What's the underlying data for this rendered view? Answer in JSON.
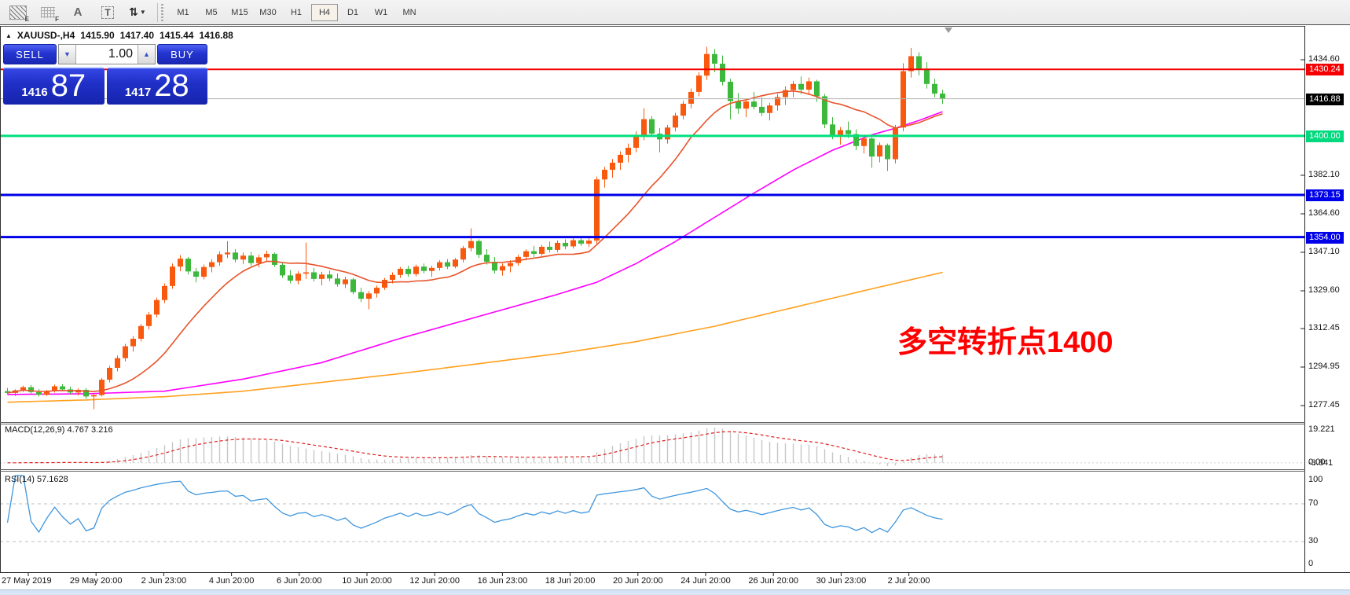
{
  "toolbar": {
    "icons": [
      {
        "name": "hatch-pattern-e-icon",
        "sub": "E"
      },
      {
        "name": "dotted-grid-f-icon",
        "sub": "F"
      },
      {
        "name": "text-label-a-icon",
        "glyph": "A"
      },
      {
        "name": "text-box-t-icon",
        "glyph": "T"
      },
      {
        "name": "sort-arrows-icon",
        "glyph": "⇅",
        "caret": "▼"
      }
    ],
    "timeframes": [
      "M1",
      "M5",
      "M15",
      "M30",
      "H1",
      "H4",
      "D1",
      "W1",
      "MN"
    ],
    "active_timeframe": "H4"
  },
  "chart_header": {
    "collapse": "▲",
    "symbol": "XAUUSD-,H4",
    "open": "1415.90",
    "high": "1417.40",
    "low": "1415.44",
    "close": "1416.88"
  },
  "trade_panel": {
    "sell_label": "SELL",
    "buy_label": "BUY",
    "volume": "1.00",
    "spin_down_glyph": "▼",
    "spin_up_glyph": "▲",
    "sell_price_major": "1416",
    "sell_price_minor": "87",
    "buy_price_major": "1417",
    "buy_price_minor": "28"
  },
  "annotation": {
    "text": "多空转折点1400",
    "color": "#ff0000"
  },
  "price_axis": {
    "plain_ticks": [
      1434.6,
      1382.1,
      1364.6,
      1347.1,
      1329.6,
      1312.45,
      1294.95,
      1277.45
    ],
    "lines": [
      {
        "price": 1430.24,
        "text": "1430.24",
        "bg": "#f40000",
        "line_color": "#f40000",
        "width": 2
      },
      {
        "price": 1416.88,
        "text": "1416.88",
        "bg": "#000000",
        "line_color": "#b4b4b4",
        "width": 1
      },
      {
        "price": 1400.0,
        "text": "1400.00",
        "bg": "#00d97d",
        "line_color": "#00e07e",
        "width": 3
      },
      {
        "price": 1373.15,
        "text": "1373.15",
        "bg": "#0000e8",
        "line_color": "#0000e8",
        "width": 3
      },
      {
        "price": 1354.0,
        "text": "1354.00",
        "bg": "#0000e8",
        "line_color": "#0000e8",
        "width": 3
      }
    ]
  },
  "time_axis": {
    "labels": [
      "27 May 2019",
      "29 May 20:00",
      "2 Jun 23:00",
      "4 Jun 20:00",
      "6 Jun 20:00",
      "10 Jun 20:00",
      "12 Jun 20:00",
      "16 Jun 23:00",
      "18 Jun 20:00",
      "20 Jun 20:00",
      "24 Jun 20:00",
      "26 Jun 20:00",
      "30 Jun 23:00",
      "2 Jul 20:00"
    ]
  },
  "indicators": {
    "macd": {
      "label": "MACD(12,26,9) 4.767 3.216",
      "fast": 12,
      "slow": 26,
      "signal": 9,
      "axis": [
        {
          "v": 19.221,
          "t": "19.221"
        },
        {
          "v": 0,
          "t": "0.00"
        },
        {
          "v": -3.841,
          "t": "-3.841"
        }
      ],
      "value": 4.767,
      "signal_value": 3.216
    },
    "rsi": {
      "label": "RSI(14) 57.1628",
      "period": 14,
      "value": 57.1628,
      "axis": [
        100,
        70,
        30,
        0
      ],
      "levels": [
        70,
        30
      ]
    }
  },
  "chart_data": {
    "type": "candlestick",
    "symbol": "XAUUSD-",
    "timeframe": "H4",
    "ylim": [
      1270.0,
      1450.0
    ],
    "colors": {
      "up": "#f8590f",
      "down": "#3cb83c",
      "ma_fast": "#e8532a",
      "ma_mid": "#ff00ff",
      "ma_slow": "#ffa01e",
      "macd_hist": "#c6c6c6",
      "macd_signal": "#e02020",
      "rsi_line": "#4096dd",
      "level_dash": "#bcbcbc"
    },
    "ma_fast_period": 13,
    "candles": [
      [
        1284.0,
        1285.5,
        1282.5,
        1283.2
      ],
      [
        1283.2,
        1284.8,
        1281.8,
        1284.4
      ],
      [
        1284.4,
        1286.5,
        1283.6,
        1285.8
      ],
      [
        1285.8,
        1286.8,
        1283.0,
        1283.6
      ],
      [
        1283.6,
        1285.0,
        1281.5,
        1282.4
      ],
      [
        1282.4,
        1284.6,
        1281.8,
        1284.0
      ],
      [
        1284.0,
        1287.0,
        1283.4,
        1286.2
      ],
      [
        1286.2,
        1287.2,
        1284.0,
        1284.8
      ],
      [
        1284.8,
        1286.0,
        1282.6,
        1283.4
      ],
      [
        1283.4,
        1285.2,
        1282.0,
        1284.6
      ],
      [
        1284.6,
        1285.4,
        1280.5,
        1281.6
      ],
      [
        1281.6,
        1283.0,
        1275.8,
        1282.2
      ],
      [
        1282.2,
        1290.0,
        1281.6,
        1289.2
      ],
      [
        1289.2,
        1295.5,
        1288.0,
        1294.6
      ],
      [
        1294.6,
        1300.2,
        1293.0,
        1299.0
      ],
      [
        1299.0,
        1305.5,
        1297.5,
        1304.4
      ],
      [
        1304.4,
        1309.0,
        1302.0,
        1307.8
      ],
      [
        1307.8,
        1314.5,
        1306.6,
        1313.6
      ],
      [
        1313.6,
        1320.0,
        1312.0,
        1318.8
      ],
      [
        1318.8,
        1326.5,
        1317.5,
        1325.4
      ],
      [
        1325.4,
        1333.0,
        1324.0,
        1331.8
      ],
      [
        1331.8,
        1342.0,
        1330.5,
        1340.6
      ],
      [
        1340.6,
        1345.8,
        1338.5,
        1344.2
      ],
      [
        1344.2,
        1345.0,
        1337.0,
        1338.4
      ],
      [
        1338.4,
        1340.0,
        1333.5,
        1336.0
      ],
      [
        1336.0,
        1341.5,
        1334.8,
        1340.4
      ],
      [
        1340.4,
        1344.0,
        1338.0,
        1342.6
      ],
      [
        1342.6,
        1347.5,
        1341.0,
        1346.2
      ],
      [
        1346.2,
        1352.2,
        1344.5,
        1347.0
      ],
      [
        1347.0,
        1348.5,
        1342.5,
        1343.8
      ],
      [
        1343.8,
        1347.0,
        1341.8,
        1345.6
      ],
      [
        1345.6,
        1347.2,
        1341.0,
        1342.2
      ],
      [
        1342.2,
        1346.0,
        1340.2,
        1344.8
      ],
      [
        1344.8,
        1347.8,
        1343.0,
        1346.4
      ],
      [
        1346.4,
        1347.0,
        1340.5,
        1341.4
      ],
      [
        1341.4,
        1342.5,
        1335.5,
        1336.6
      ],
      [
        1336.6,
        1339.0,
        1333.0,
        1334.2
      ],
      [
        1334.2,
        1338.5,
        1332.5,
        1337.4
      ],
      [
        1337.4,
        1351.5,
        1335.0,
        1338.0
      ],
      [
        1338.0,
        1340.0,
        1333.8,
        1335.0
      ],
      [
        1335.0,
        1338.2,
        1332.0,
        1337.0
      ],
      [
        1337.0,
        1338.8,
        1334.0,
        1335.2
      ],
      [
        1335.2,
        1337.5,
        1331.5,
        1332.6
      ],
      [
        1332.6,
        1336.0,
        1330.8,
        1334.8
      ],
      [
        1334.8,
        1335.5,
        1328.0,
        1329.0
      ],
      [
        1329.0,
        1331.0,
        1324.5,
        1326.0
      ],
      [
        1326.0,
        1329.5,
        1321.2,
        1328.4
      ],
      [
        1328.4,
        1332.0,
        1326.5,
        1331.0
      ],
      [
        1331.0,
        1335.5,
        1330.0,
        1334.6
      ],
      [
        1334.6,
        1338.0,
        1333.0,
        1336.8
      ],
      [
        1336.8,
        1340.5,
        1335.5,
        1339.6
      ],
      [
        1339.6,
        1341.0,
        1336.0,
        1337.2
      ],
      [
        1337.2,
        1341.5,
        1336.2,
        1340.6
      ],
      [
        1340.6,
        1342.0,
        1337.5,
        1338.6
      ],
      [
        1338.6,
        1341.0,
        1336.0,
        1340.0
      ],
      [
        1340.0,
        1343.5,
        1338.8,
        1342.6
      ],
      [
        1342.6,
        1344.0,
        1339.5,
        1340.6
      ],
      [
        1340.6,
        1344.5,
        1339.8,
        1343.8
      ],
      [
        1343.8,
        1350.0,
        1342.5,
        1349.0
      ],
      [
        1349.0,
        1358.0,
        1347.5,
        1352.2
      ],
      [
        1352.2,
        1353.0,
        1344.5,
        1346.0
      ],
      [
        1346.0,
        1348.5,
        1341.5,
        1342.8
      ],
      [
        1342.8,
        1345.0,
        1337.5,
        1338.8
      ],
      [
        1338.8,
        1342.0,
        1336.5,
        1340.8
      ],
      [
        1340.8,
        1343.5,
        1338.0,
        1342.2
      ],
      [
        1342.2,
        1346.0,
        1341.0,
        1345.0
      ],
      [
        1345.0,
        1348.5,
        1343.5,
        1347.6
      ],
      [
        1347.6,
        1350.0,
        1345.0,
        1346.4
      ],
      [
        1346.4,
        1350.5,
        1345.5,
        1349.6
      ],
      [
        1349.6,
        1352.0,
        1347.0,
        1348.2
      ],
      [
        1348.2,
        1352.5,
        1347.2,
        1351.4
      ],
      [
        1351.4,
        1353.0,
        1348.5,
        1349.8
      ],
      [
        1349.8,
        1353.5,
        1348.8,
        1352.6
      ],
      [
        1352.6,
        1354.2,
        1350.0,
        1351.0
      ],
      [
        1351.0,
        1354.5,
        1349.5,
        1352.4
      ],
      [
        1352.4,
        1381.5,
        1350.5,
        1380.2
      ],
      [
        1380.2,
        1386.0,
        1376.5,
        1384.6
      ],
      [
        1384.6,
        1389.5,
        1381.0,
        1387.8
      ],
      [
        1387.8,
        1393.0,
        1384.5,
        1391.4
      ],
      [
        1391.4,
        1396.5,
        1388.0,
        1394.6
      ],
      [
        1394.6,
        1402.0,
        1392.5,
        1399.8
      ],
      [
        1399.8,
        1412.5,
        1398.0,
        1407.6
      ],
      [
        1407.6,
        1409.0,
        1399.5,
        1401.0
      ],
      [
        1401.0,
        1403.5,
        1392.5,
        1398.4
      ],
      [
        1398.4,
        1405.0,
        1396.5,
        1403.8
      ],
      [
        1403.8,
        1410.5,
        1402.0,
        1409.2
      ],
      [
        1409.2,
        1416.0,
        1407.5,
        1414.6
      ],
      [
        1414.6,
        1421.5,
        1412.5,
        1420.0
      ],
      [
        1420.0,
        1429.0,
        1418.0,
        1427.4
      ],
      [
        1427.4,
        1440.5,
        1425.5,
        1437.2
      ],
      [
        1437.2,
        1439.5,
        1429.0,
        1432.8
      ],
      [
        1432.8,
        1436.5,
        1423.0,
        1424.6
      ],
      [
        1424.6,
        1426.0,
        1407.5,
        1415.8
      ],
      [
        1415.8,
        1419.5,
        1410.0,
        1412.4
      ],
      [
        1412.4,
        1417.0,
        1408.5,
        1415.6
      ],
      [
        1415.6,
        1420.0,
        1412.0,
        1413.2
      ],
      [
        1413.2,
        1417.5,
        1409.0,
        1410.4
      ],
      [
        1410.4,
        1415.0,
        1407.0,
        1413.8
      ],
      [
        1413.8,
        1419.0,
        1411.5,
        1417.6
      ],
      [
        1417.6,
        1422.5,
        1414.0,
        1420.8
      ],
      [
        1420.8,
        1425.0,
        1417.5,
        1423.6
      ],
      [
        1423.6,
        1427.0,
        1419.0,
        1421.0
      ],
      [
        1421.0,
        1426.5,
        1418.5,
        1424.8
      ],
      [
        1424.8,
        1425.5,
        1415.5,
        1418.0
      ],
      [
        1418.0,
        1419.0,
        1403.5,
        1405.2
      ],
      [
        1405.2,
        1408.5,
        1398.5,
        1400.0
      ],
      [
        1400.0,
        1404.0,
        1396.0,
        1402.6
      ],
      [
        1402.6,
        1406.5,
        1399.0,
        1400.8
      ],
      [
        1400.8,
        1403.0,
        1393.5,
        1395.4
      ],
      [
        1395.4,
        1400.5,
        1392.0,
        1398.8
      ],
      [
        1398.8,
        1399.5,
        1385.5,
        1390.6
      ],
      [
        1390.6,
        1397.0,
        1388.0,
        1395.8
      ],
      [
        1395.8,
        1396.5,
        1384.0,
        1389.4
      ],
      [
        1389.4,
        1405.0,
        1387.5,
        1403.8
      ],
      [
        1403.8,
        1433.0,
        1402.0,
        1429.4
      ],
      [
        1429.4,
        1440.0,
        1426.5,
        1436.2
      ],
      [
        1436.2,
        1438.0,
        1427.5,
        1430.0
      ],
      [
        1430.0,
        1433.5,
        1421.5,
        1423.6
      ],
      [
        1423.6,
        1426.0,
        1417.5,
        1419.2
      ],
      [
        1419.2,
        1421.0,
        1414.5,
        1416.9
      ]
    ],
    "ma_mid_points": [
      [
        0,
        1282.5
      ],
      [
        10,
        1282.8
      ],
      [
        20,
        1284
      ],
      [
        30,
        1289.5
      ],
      [
        40,
        1297
      ],
      [
        50,
        1308
      ],
      [
        60,
        1318
      ],
      [
        70,
        1328
      ],
      [
        75,
        1333.5
      ],
      [
        80,
        1342
      ],
      [
        85,
        1352
      ],
      [
        90,
        1363
      ],
      [
        95,
        1374
      ],
      [
        100,
        1384.5
      ],
      [
        105,
        1393.5
      ],
      [
        110,
        1400.5
      ],
      [
        113,
        1403.5
      ],
      [
        116,
        1407
      ],
      [
        119,
        1411
      ]
    ],
    "ma_slow_points": [
      [
        0,
        1279
      ],
      [
        10,
        1280
      ],
      [
        20,
        1281.5
      ],
      [
        30,
        1284
      ],
      [
        40,
        1288
      ],
      [
        50,
        1292
      ],
      [
        60,
        1296.5
      ],
      [
        70,
        1301
      ],
      [
        80,
        1306.5
      ],
      [
        90,
        1313.5
      ],
      [
        100,
        1322
      ],
      [
        110,
        1330.5
      ],
      [
        119,
        1338
      ]
    ]
  }
}
